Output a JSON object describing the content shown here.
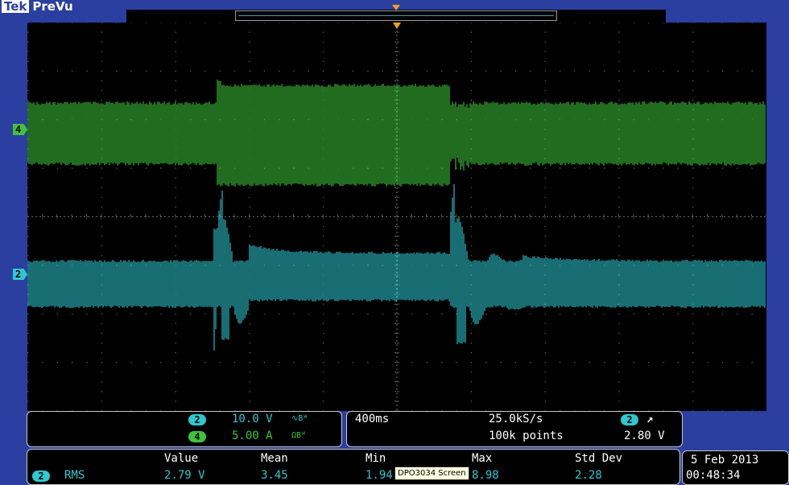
{
  "header": {
    "brand": "Tek",
    "mode": "PreVu"
  },
  "screen": {
    "h_divisions": 10,
    "v_divisions": 8,
    "sub_ticks": 5
  },
  "waveforms": {
    "ch4": {
      "color": "#3ec43a",
      "marker": "4"
    },
    "ch2": {
      "color": "#2ec8d2",
      "marker": "2"
    }
  },
  "channels": {
    "ch2": {
      "number": "2",
      "scale": "10.0 V",
      "suffix": "∿Bᵂ"
    },
    "ch4": {
      "number": "4",
      "scale": "5.00 A",
      "suffix": "ΩBᵂ"
    }
  },
  "timebase": {
    "scale": "400ms",
    "sample_rate": "25.0kS/s",
    "record_length": "100k points"
  },
  "trigger": {
    "source": "2",
    "slope_symbol": "↗",
    "level": "2.80 V"
  },
  "measurements": {
    "headers": {
      "value": "Value",
      "mean": "Mean",
      "min": "Min",
      "max": "Max",
      "std": "Std Dev"
    },
    "row": {
      "channel": "2",
      "type": "RMS",
      "value": "2.79 V",
      "mean": "3.45",
      "min": "1.94",
      "max": "8.98",
      "std": "2.28"
    }
  },
  "datetime": {
    "date": "5 Feb 2013",
    "time": "00:48:34"
  },
  "tooltip": {
    "text": "DPO3034 Screen"
  }
}
